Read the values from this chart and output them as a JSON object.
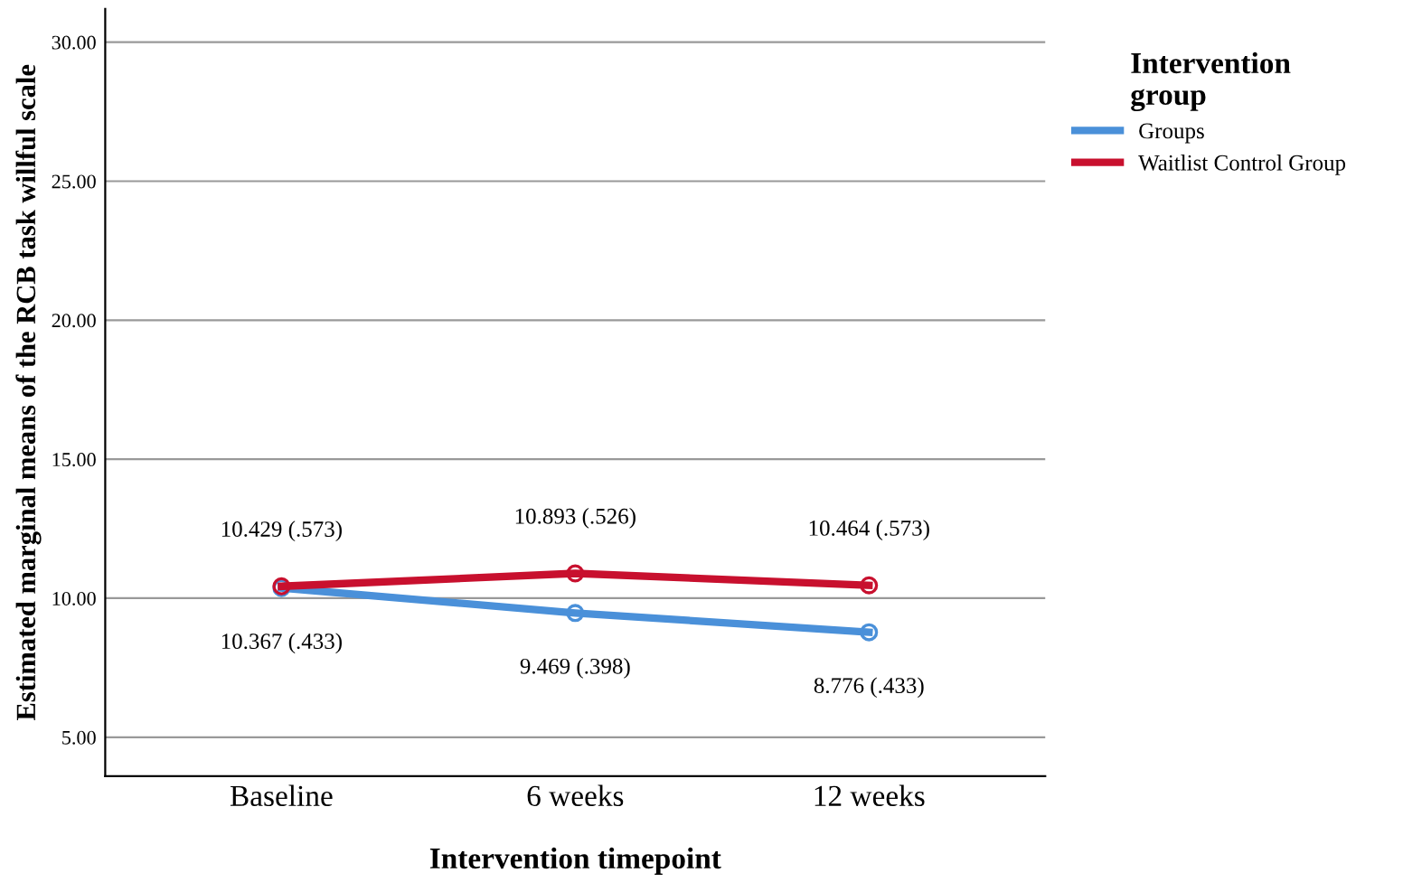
{
  "chart_data": {
    "type": "line",
    "xlabel": "Intervention timepoint",
    "ylabel": "Estimated marginal means of the RCB task willful scale",
    "legend_title": "Intervention\ngroup",
    "categories": [
      "Baseline",
      "6 weeks",
      "12 weeks"
    ],
    "series": [
      {
        "name": "Groups",
        "color": "#4a90d9",
        "values": [
          10.367,
          9.469,
          8.776
        ],
        "value_labels": [
          "10.367 (.433)",
          "9.469 (.398)",
          "8.776 (.433)"
        ]
      },
      {
        "name": "Waitlist Control Group",
        "color": "#c8102e",
        "values": [
          10.429,
          10.893,
          10.464
        ],
        "value_labels": [
          "10.429 (.573)",
          "10.893 (.526)",
          "10.464 (.573)"
        ]
      }
    ],
    "ylim": [
      3.6,
      31.2
    ],
    "yticks": [
      {
        "value": 5,
        "label": "5.00"
      },
      {
        "value": 10,
        "label": "10.00"
      },
      {
        "value": 15,
        "label": "15.00"
      },
      {
        "value": 20,
        "label": "20.00"
      },
      {
        "value": 25,
        "label": "25.00"
      },
      {
        "value": 30,
        "label": "30.00"
      }
    ],
    "grid": "y",
    "legend": "top right",
    "marker": "circle",
    "line_style": "solid"
  }
}
